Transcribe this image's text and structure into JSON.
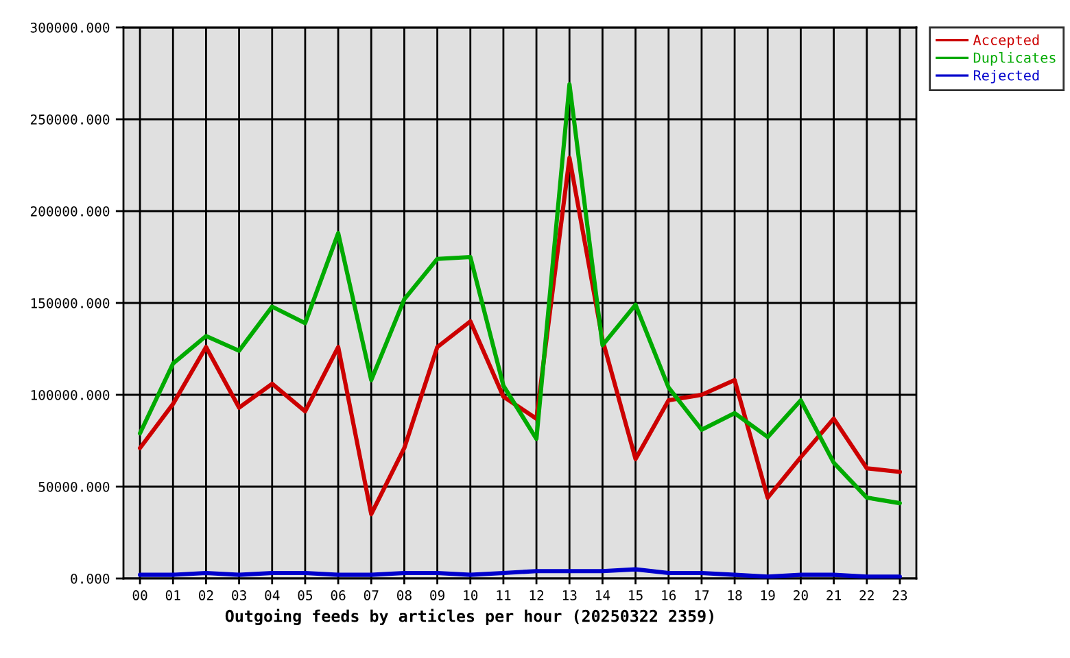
{
  "chart_data": {
    "type": "line",
    "xlabel": "Outgoing feeds by articles per hour (20250322 2359)",
    "categories": [
      "00",
      "01",
      "02",
      "03",
      "04",
      "05",
      "06",
      "07",
      "08",
      "09",
      "10",
      "11",
      "12",
      "13",
      "14",
      "15",
      "16",
      "17",
      "18",
      "19",
      "20",
      "21",
      "22",
      "23"
    ],
    "series": [
      {
        "name": "Accepted",
        "color": "#cc0000",
        "values": [
          71000,
          95000,
          126000,
          93000,
          106000,
          91000,
          126000,
          35000,
          71000,
          126000,
          140000,
          99000,
          87000,
          229000,
          130000,
          65000,
          97000,
          100000,
          108000,
          44000,
          66000,
          87000,
          60000,
          58000
        ]
      },
      {
        "name": "Duplicates",
        "color": "#00aa00",
        "values": [
          79000,
          117000,
          132000,
          124000,
          148000,
          139000,
          188000,
          108000,
          152000,
          174000,
          175000,
          105000,
          76000,
          269000,
          127000,
          149000,
          104000,
          81000,
          90000,
          77000,
          97000,
          63000,
          44000,
          41000
        ]
      },
      {
        "name": "Rejected",
        "color": "#0000cc",
        "values": [
          2000,
          2000,
          3000,
          2000,
          3000,
          3000,
          2000,
          2000,
          3000,
          3000,
          2000,
          3000,
          4000,
          4000,
          4000,
          5000,
          3000,
          3000,
          2000,
          1000,
          2000,
          2000,
          1000,
          1000
        ]
      }
    ],
    "ylim": [
      0,
      300000
    ],
    "yticks": [
      {
        "value": 0,
        "label": "0.000"
      },
      {
        "value": 50000,
        "label": "50000.000"
      },
      {
        "value": 100000,
        "label": "100000.000"
      },
      {
        "value": 150000,
        "label": "150000.000"
      },
      {
        "value": 200000,
        "label": "200000.000"
      },
      {
        "value": 250000,
        "label": "250000.000"
      },
      {
        "value": 300000,
        "label": "300000.000"
      }
    ],
    "grid": true,
    "legend": "top right",
    "line_style": "solid"
  }
}
